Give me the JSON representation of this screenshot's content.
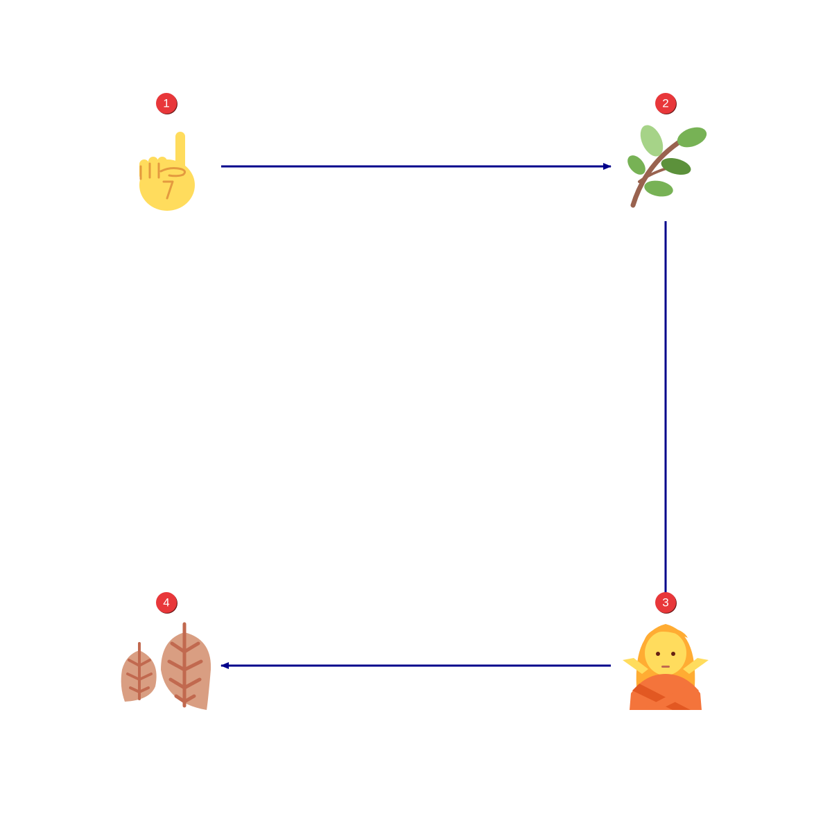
{
  "diagram": {
    "type": "cycle-flow",
    "colors": {
      "connector": "#00008b",
      "badge_fill": "#e8373a",
      "badge_shadow": "#6b1a1a",
      "badge_text": "#ffffff"
    },
    "steps": [
      {
        "number": "1",
        "icon": "index-pointing-up-icon"
      },
      {
        "number": "2",
        "icon": "herb-branch-icon"
      },
      {
        "number": "3",
        "icon": "person-gesturing-no-icon"
      },
      {
        "number": "4",
        "icon": "dried-leaves-icon"
      }
    ],
    "connectors": [
      {
        "from": "1",
        "to": "2",
        "arrowhead": true
      },
      {
        "from": "2",
        "to": "3",
        "arrowhead": false
      },
      {
        "from": "3",
        "to": "4",
        "arrowhead": true
      }
    ]
  }
}
